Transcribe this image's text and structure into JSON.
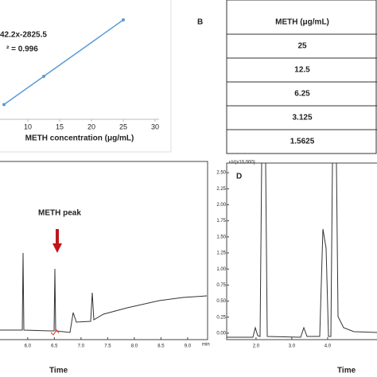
{
  "chart_data": [
    {
      "type": "line",
      "annotations": [
        "42.2x-2825.5",
        "² = 0.996"
      ],
      "x_label": "METH concentration (μg/mL)",
      "x": [
        6.25,
        12.5,
        25
      ],
      "series": [
        {
          "color": "#5b9bd5",
          "values": [
            17439,
            37702,
            78229
          ]
        }
      ],
      "xlim": [
        5.625,
        30
      ],
      "ylim": [
        6850,
        92500
      ],
      "xticks": [
        10,
        15,
        20,
        25,
        30
      ]
    },
    {
      "type": "chromatogram",
      "x_label": "Time",
      "annotation": "METH peak",
      "unit": "min",
      "xlim": [
        5.48,
        9.36
      ],
      "xticks": [
        {
          "value": 6,
          "label": "6.0"
        },
        {
          "value": 6.5,
          "label": "6.5"
        },
        {
          "value": 7,
          "label": "7.0"
        },
        {
          "value": 7.5,
          "label": "7.5"
        },
        {
          "value": 8,
          "label": "8.0"
        },
        {
          "value": 8.5,
          "label": "8.5"
        },
        {
          "value": 9,
          "label": "9.0"
        }
      ]
    },
    {
      "type": "chromatogram",
      "panel": "D",
      "x_label": "Time",
      "y_label": "uV(x10,000)",
      "xlim": [
        1.18,
        5.38
      ],
      "ylim": [
        -0.1,
        2.65
      ],
      "xticks": [
        {
          "value": 2,
          "label": "2.0"
        },
        {
          "value": 3,
          "label": "3.0"
        },
        {
          "value": 4,
          "label": "4.0"
        }
      ],
      "yticks": [
        {
          "value": 0,
          "label": "0.00"
        },
        {
          "value": 0.25,
          "label": "0.25"
        },
        {
          "value": 0.5,
          "label": "0.50"
        },
        {
          "value": 0.75,
          "label": "0.75"
        },
        {
          "value": 1,
          "label": "1.00"
        },
        {
          "value": 1.25,
          "label": "1.25"
        },
        {
          "value": 1.5,
          "label": "1.50"
        },
        {
          "value": 1.75,
          "label": "1.75"
        },
        {
          "value": 2,
          "label": "2.00"
        },
        {
          "value": 2.25,
          "label": "2.25"
        },
        {
          "value": 2.5,
          "label": "2.50"
        }
      ]
    }
  ],
  "table": {
    "panel": "B",
    "header": "METH (μg/mL)",
    "rows": [
      "25",
      "12.5",
      "6.25",
      "3.125",
      "1.5625"
    ]
  }
}
